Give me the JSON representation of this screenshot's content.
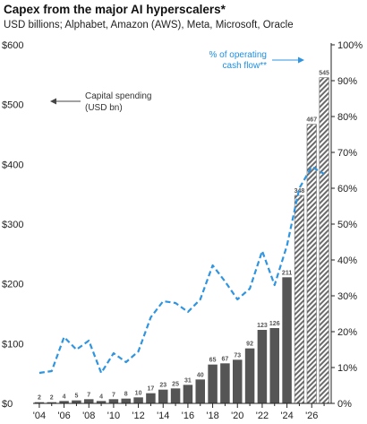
{
  "title": "Capex from the major AI hyperscalers*",
  "subtitle": "USD billions; Alphabet, Amazon (AWS), Meta, Microsoft, Oracle",
  "chart_data": {
    "type": "bar",
    "years": [
      2004,
      2005,
      2006,
      2007,
      2008,
      2009,
      2010,
      2011,
      2012,
      2013,
      2014,
      2015,
      2016,
      2017,
      2018,
      2019,
      2020,
      2021,
      2022,
      2023,
      2024,
      2025,
      2026,
      2027
    ],
    "x_tick_labels": [
      "'04",
      "'06",
      "'08",
      "'10",
      "'12",
      "'14",
      "'16",
      "'18",
      "'20",
      "'22",
      "'24",
      "'26"
    ],
    "series": [
      {
        "name": "Capital spending (USD bn)",
        "axis": "left",
        "values": [
          2,
          2,
          4,
          5,
          7,
          4,
          7,
          8,
          10,
          17,
          23,
          25,
          31,
          40,
          65,
          67,
          73,
          92,
          123,
          126,
          211,
          348,
          467,
          545
        ],
        "labels": [
          "2",
          "2",
          "4",
          "5",
          "7",
          "4",
          "7",
          "8",
          "10",
          "17",
          "23",
          "25",
          "31",
          "40",
          "65",
          "67",
          "73",
          "92",
          "123",
          "126",
          "211",
          "348",
          "467",
          "545"
        ],
        "estimate_from_year": 2025,
        "color": "#555555"
      },
      {
        "name": "% of operating cash flow**",
        "axis": "right",
        "x": [
          2004,
          2005,
          2006,
          2007,
          2008,
          2009,
          2010,
          2011,
          2012,
          2013,
          2014,
          2015,
          2016,
          2017,
          2018,
          2019,
          2020,
          2021,
          2022,
          2023,
          2024,
          2025,
          2026,
          2027
        ],
        "values": [
          8.5,
          9,
          18.5,
          15,
          17.5,
          8.5,
          14,
          11.5,
          14.5,
          24,
          28.5,
          28,
          25.5,
          29,
          38.5,
          34,
          29,
          32,
          42.5,
          33,
          44,
          60,
          66,
          64
        ],
        "color": "#2f95e0"
      }
    ],
    "y_left": {
      "lim": [
        0,
        600
      ],
      "ticks": [
        0,
        100,
        200,
        300,
        400,
        500,
        600
      ],
      "tick_labels": [
        "$0",
        "$100",
        "$200",
        "$300",
        "$400",
        "$500",
        "$600"
      ]
    },
    "y_right": {
      "lim": [
        0,
        100
      ],
      "ticks": [
        0,
        10,
        20,
        30,
        40,
        50,
        60,
        70,
        80,
        90,
        100
      ],
      "tick_labels": [
        "0%",
        "10%",
        "20%",
        "30%",
        "40%",
        "50%",
        "60%",
        "70%",
        "80%",
        "90%",
        "100%"
      ]
    },
    "annotations": {
      "capex_line1": "Capital spending",
      "capex_line2": "(USD bn)",
      "cf_line1": "% of operating",
      "cf_line2": "cash flow**"
    },
    "grid": false,
    "legend": "inline annotations"
  }
}
